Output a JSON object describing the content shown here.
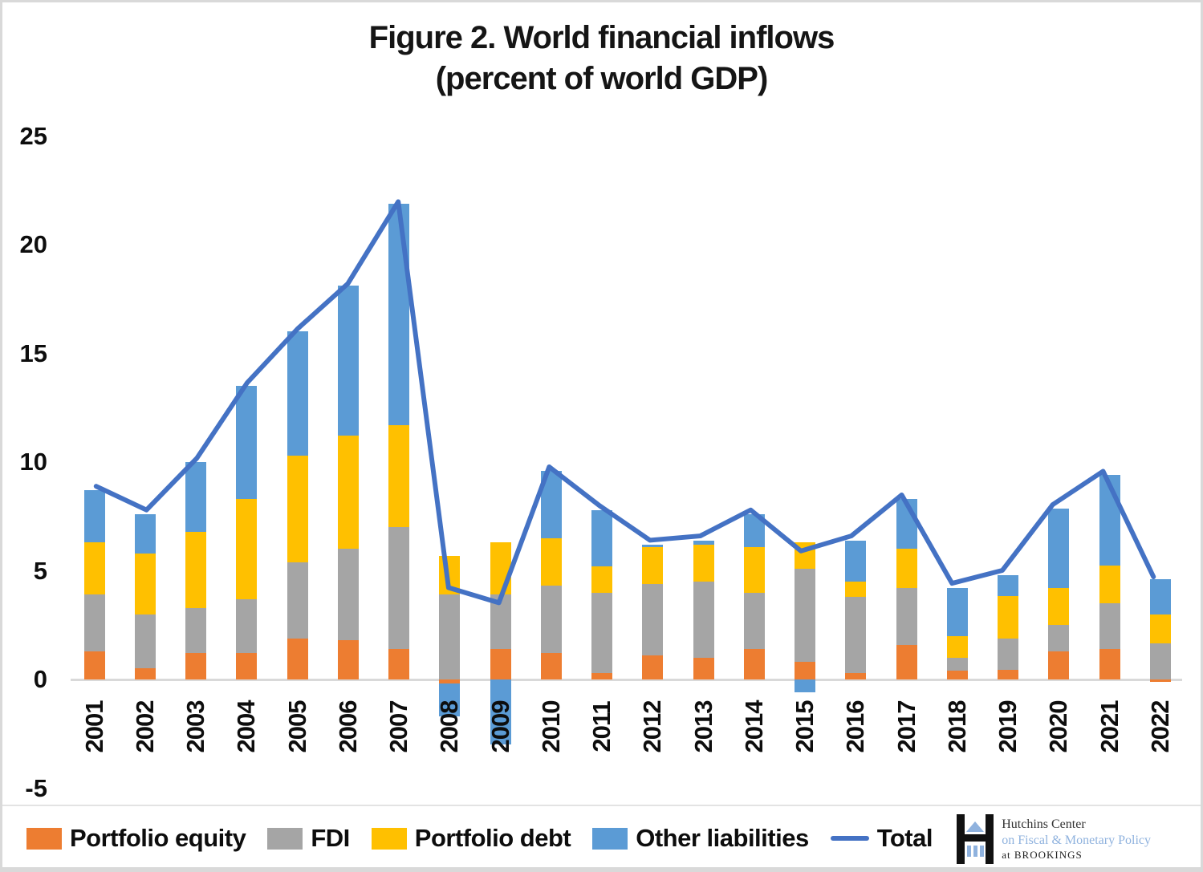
{
  "figure": {
    "title_line1": "Figure 2. World financial inflows",
    "title_line2": "(percent of world GDP)"
  },
  "chart_data": {
    "type": "bar",
    "subtype": "stacked-bars-with-total-line",
    "title": "Figure 2. World financial inflows (percent of world GDP)",
    "xlabel": "",
    "ylabel": "percent of world GDP",
    "ylim": [
      -5,
      25
    ],
    "yticks": [
      25,
      20,
      15,
      10,
      5,
      0,
      -5
    ],
    "grid": "zero-axis-only",
    "legend_position": "bottom",
    "categories": [
      "2001",
      "2002",
      "2003",
      "2004",
      "2005",
      "2006",
      "2007",
      "2008",
      "2009",
      "2010",
      "2011",
      "2012",
      "2013",
      "2014",
      "2015",
      "2016",
      "2017",
      "2018",
      "2019",
      "2020",
      "2021",
      "2022"
    ],
    "series": [
      {
        "name": "Portfolio equity",
        "color": "#ED7D31",
        "values": [
          1.3,
          0.5,
          1.2,
          1.2,
          1.9,
          1.8,
          1.4,
          -0.2,
          1.4,
          1.2,
          0.3,
          1.1,
          1.0,
          1.4,
          0.8,
          0.3,
          1.6,
          0.4,
          0.45,
          1.3,
          1.4,
          -0.1
        ]
      },
      {
        "name": "FDI",
        "color": "#A5A5A5",
        "values": [
          2.6,
          2.5,
          2.1,
          2.5,
          3.5,
          4.2,
          5.6,
          3.9,
          2.5,
          3.1,
          3.7,
          3.3,
          3.5,
          2.6,
          4.3,
          3.5,
          2.6,
          0.6,
          1.45,
          1.2,
          2.1,
          1.65
        ]
      },
      {
        "name": "Portfolio debt",
        "color": "#FFC000",
        "values": [
          2.4,
          2.8,
          3.5,
          4.6,
          4.9,
          5.2,
          4.7,
          1.8,
          2.4,
          2.2,
          1.2,
          1.7,
          1.7,
          2.1,
          1.2,
          0.7,
          1.8,
          1.0,
          1.95,
          1.7,
          1.75,
          1.35
        ]
      },
      {
        "name": "Other liabilities",
        "color": "#5B9BD5",
        "values": [
          2.4,
          1.8,
          3.2,
          5.2,
          5.7,
          6.9,
          10.2,
          -1.5,
          -3.0,
          3.1,
          2.6,
          0.1,
          0.2,
          1.5,
          -0.6,
          1.9,
          2.3,
          2.2,
          0.95,
          3.65,
          4.15,
          1.6
        ]
      }
    ],
    "line_series": {
      "name": "Total",
      "color": "#4472C4",
      "values": [
        8.7,
        7.6,
        10.0,
        13.5,
        16.0,
        18.1,
        21.9,
        4.0,
        3.3,
        9.6,
        7.8,
        6.2,
        6.4,
        7.6,
        5.7,
        6.4,
        8.3,
        4.2,
        4.8,
        7.85,
        9.4,
        4.5
      ]
    }
  },
  "legend": {
    "items": [
      {
        "label": "Portfolio equity",
        "color": "#ED7D31",
        "type": "box"
      },
      {
        "label": "FDI",
        "color": "#A5A5A5",
        "type": "box"
      },
      {
        "label": "Portfolio debt",
        "color": "#FFC000",
        "type": "box"
      },
      {
        "label": "Other liabilities",
        "color": "#5B9BD5",
        "type": "box"
      },
      {
        "label": "Total",
        "color": "#4472C4",
        "type": "line"
      }
    ]
  },
  "logo": {
    "line1": "Hutchins Center",
    "line2": "on Fiscal & Monetary Policy",
    "line3": "at BROOKINGS",
    "accent_color": "#8FB2DE"
  },
  "colors": {
    "axis_line": "#D9D9D9",
    "text": "#0D0D0D",
    "background": "#FFFFFF"
  }
}
